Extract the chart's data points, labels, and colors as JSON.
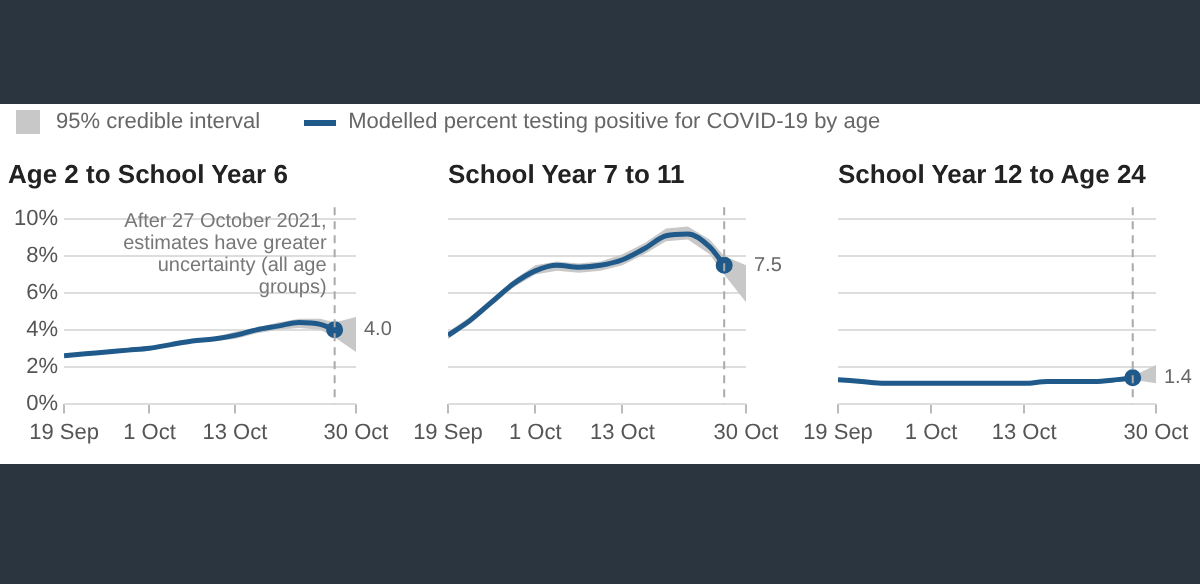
{
  "chart_data": [
    {
      "type": "line",
      "title": "Age 2 to School Year 6",
      "legend": "top",
      "annotations": [
        "95% credible interval"
      ],
      "grid": "y",
      "tick_labels": "xy",
      "x": [
        "--09-19",
        "--09-22",
        "--09-25",
        "--09-28",
        "--10-01",
        "--10-04",
        "--10-07",
        "--10-10",
        "--10-13",
        "--10-16",
        "--10-19",
        "--10-22",
        "--10-25",
        "--10-27",
        "--10-30"
      ],
      "xlim": [
        "--09-19",
        "--10-30"
      ],
      "xticks": [
        {
          "value": "--09-19",
          "label": "19 Sep"
        },
        {
          "value": "--10-01",
          "label": "1 Oct"
        },
        {
          "value": "--10-13",
          "label": "13 Oct"
        },
        {
          "value": "--10-30",
          "label": "30 Oct"
        }
      ],
      "ylim": [
        0,
        10
      ],
      "yticks": [
        {
          "value": 0,
          "label": "0%"
        },
        {
          "value": 2,
          "label": "2%"
        },
        {
          "value": 4,
          "label": "4%"
        },
        {
          "value": 6,
          "label": "6%"
        },
        {
          "value": 8,
          "label": "8%"
        },
        {
          "value": 10,
          "label": "10%"
        }
      ],
      "ref_lines": [
        {
          "axis": "x",
          "value": "--10-27",
          "label": "After 27 October 2021, estimates have greater uncertainty (all age groups)",
          "color": "#aaaaaa",
          "line_style": "dashed"
        }
      ],
      "series": [
        {
          "name": "Modelled percent testing positive for COVID-19 by age",
          "color": "#1f5a8a",
          "values": [
            2.6,
            2.7,
            2.8,
            2.9,
            3.0,
            3.2,
            3.4,
            3.5,
            3.7,
            4.0,
            4.2,
            4.4,
            4.3,
            4.0,
            null
          ],
          "lower": [
            2.5,
            2.6,
            2.7,
            2.8,
            2.9,
            3.1,
            3.3,
            3.4,
            3.5,
            3.8,
            4.0,
            4.1,
            4.0,
            3.6,
            2.8
          ],
          "upper": [
            2.7,
            2.8,
            2.9,
            3.0,
            3.1,
            3.3,
            3.5,
            3.6,
            3.9,
            4.1,
            4.4,
            4.6,
            4.6,
            4.4,
            4.7
          ],
          "value_labels": [
            null,
            null,
            null,
            null,
            null,
            null,
            null,
            null,
            null,
            null,
            null,
            null,
            null,
            "4.0",
            null
          ]
        }
      ]
    },
    {
      "type": "line",
      "title": "School Year 7 to 11",
      "grid": "y",
      "tick_labels": "x",
      "x": [
        "--09-19",
        "--09-22",
        "--09-25",
        "--09-28",
        "--10-01",
        "--10-04",
        "--10-07",
        "--10-10",
        "--10-13",
        "--10-16",
        "--10-19",
        "--10-22",
        "--10-25",
        "--10-27",
        "--10-30"
      ],
      "xlim": [
        "--09-19",
        "--10-30"
      ],
      "xticks": [
        {
          "value": "--09-19",
          "label": "19 Sep"
        },
        {
          "value": "--10-01",
          "label": "1 Oct"
        },
        {
          "value": "--10-13",
          "label": "13 Oct"
        },
        {
          "value": "--10-30",
          "label": "30 Oct"
        }
      ],
      "ylim": [
        0,
        10
      ],
      "yticks": [
        0,
        2,
        4,
        6,
        8,
        10
      ],
      "ref_lines": [
        {
          "axis": "x",
          "value": "--10-27",
          "color": "#aaaaaa",
          "line_style": "dashed"
        }
      ],
      "series": [
        {
          "color": "#1f5a8a",
          "values": [
            3.7,
            4.5,
            5.5,
            6.5,
            7.2,
            7.5,
            7.4,
            7.5,
            7.8,
            8.4,
            9.1,
            9.2,
            8.5,
            7.5,
            null
          ],
          "lower": [
            3.5,
            4.3,
            5.3,
            6.3,
            7.0,
            7.2,
            7.1,
            7.2,
            7.5,
            8.1,
            8.8,
            8.9,
            8.1,
            7.0,
            5.5
          ],
          "upper": [
            3.9,
            4.7,
            5.7,
            6.7,
            7.5,
            7.7,
            7.6,
            7.7,
            8.1,
            8.7,
            9.5,
            9.6,
            8.9,
            8.0,
            7.5
          ],
          "value_labels": [
            null,
            null,
            null,
            null,
            null,
            null,
            null,
            null,
            null,
            null,
            null,
            null,
            null,
            "7.5",
            null
          ]
        }
      ]
    },
    {
      "type": "line",
      "title": "School Year 12 to Age 24",
      "grid": "y",
      "tick_labels": "x",
      "x": [
        "--09-19",
        "--09-22",
        "--09-25",
        "--09-28",
        "--10-01",
        "--10-04",
        "--10-07",
        "--10-10",
        "--10-13",
        "--10-16",
        "--10-19",
        "--10-22",
        "--10-25",
        "--10-27",
        "--10-30"
      ],
      "xlim": [
        "--09-19",
        "--10-30"
      ],
      "xticks": [
        {
          "value": "--09-19",
          "label": "19 Sep"
        },
        {
          "value": "--10-01",
          "label": "1 Oct"
        },
        {
          "value": "--10-13",
          "label": "13 Oct"
        },
        {
          "value": "--10-30",
          "label": "30 Oct"
        }
      ],
      "ylim": [
        0,
        10
      ],
      "yticks": [
        0,
        2,
        4,
        6,
        8,
        10
      ],
      "ref_lines": [
        {
          "axis": "x",
          "value": "--10-27",
          "color": "#aaaaaa",
          "line_style": "dashed"
        }
      ],
      "series": [
        {
          "color": "#1f5a8a",
          "values": [
            1.3,
            1.2,
            1.1,
            1.1,
            1.1,
            1.1,
            1.1,
            1.1,
            1.1,
            1.2,
            1.2,
            1.2,
            1.3,
            1.4,
            null
          ],
          "lower": [
            1.2,
            1.1,
            1.0,
            1.0,
            1.0,
            1.0,
            1.0,
            1.0,
            1.0,
            1.1,
            1.1,
            1.1,
            1.2,
            1.3,
            1.1
          ],
          "upper": [
            1.4,
            1.3,
            1.2,
            1.2,
            1.2,
            1.2,
            1.2,
            1.2,
            1.2,
            1.3,
            1.3,
            1.3,
            1.4,
            1.5,
            2.1
          ],
          "value_labels": [
            null,
            null,
            null,
            null,
            null,
            null,
            null,
            null,
            null,
            null,
            null,
            null,
            null,
            "1.4",
            null
          ]
        }
      ]
    }
  ]
}
